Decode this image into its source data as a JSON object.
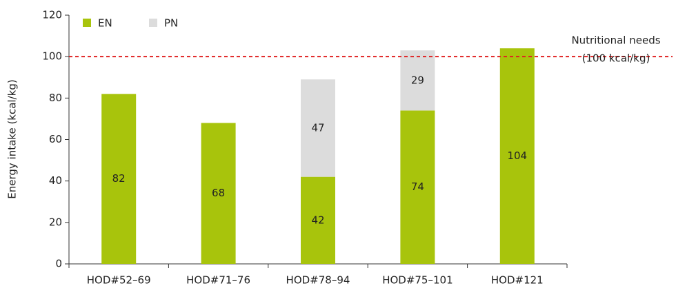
{
  "chart_data": {
    "type": "stacked_bar",
    "y_label": "Energy intake (kcal/kg)",
    "categories": [
      "HOD#52–69",
      "HOD#71–76",
      "HOD#78–94",
      "HOD#75–101",
      "HOD#121"
    ],
    "series": [
      {
        "name": "EN",
        "color": "#a8c40c",
        "values": [
          82,
          68,
          42,
          74,
          104
        ]
      },
      {
        "name": "PN",
        "color": "#dcdcdc",
        "values": [
          null,
          null,
          47,
          29,
          null
        ]
      }
    ],
    "ylim": [
      0,
      120
    ],
    "yticks": [
      0,
      20,
      40,
      60,
      80,
      100,
      120
    ],
    "reference_line": {
      "value": 100,
      "color": "#e02020",
      "label": [
        "Nutritional needs",
        "(100 kcal/kg)"
      ]
    },
    "legend": "top-left"
  }
}
